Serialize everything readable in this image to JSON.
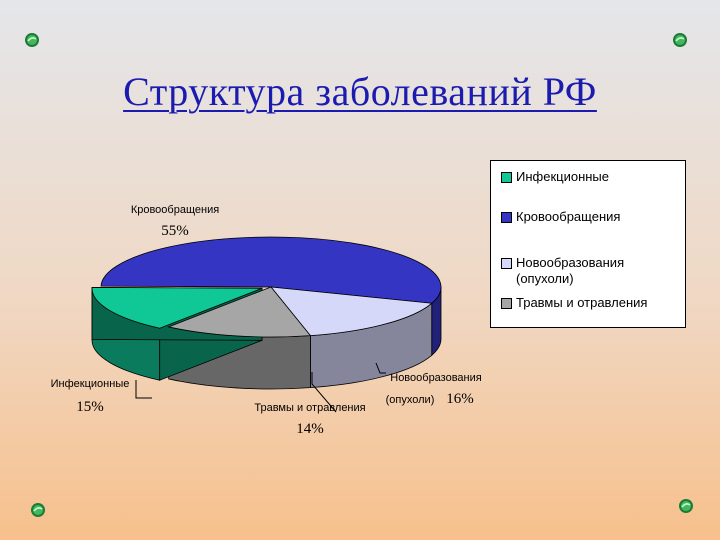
{
  "slide": {
    "title": "Структура заболеваний РФ"
  },
  "decor": {
    "corner_icon": "green-bead-icon"
  },
  "chart_data": {
    "type": "pie",
    "title": "",
    "slices": [
      {
        "label": "Кровообращения",
        "label_line1": "Кровообращения",
        "value": 55,
        "value_text": "55%",
        "color": "#3535c4"
      },
      {
        "label": "Новообразования (опухоли)",
        "label_line1": "Новообразования",
        "label_line2": "(опухоли)",
        "value": 16,
        "value_text": "16%",
        "color": "#d6d8fa"
      },
      {
        "label": "Травмы и отравления",
        "label_line1": "Травмы и отравления",
        "value": 14,
        "value_text": "14%",
        "color": "#a6a6a6"
      },
      {
        "label": "Инфекционные",
        "label_line1": "Инфекционные",
        "value": 15,
        "value_text": "15%",
        "color": "#10c896"
      }
    ],
    "legend": {
      "position": "right",
      "entries": [
        {
          "label": "Инфекционные",
          "color": "#10c896"
        },
        {
          "label": "Кровообращения",
          "color": "#3535c4"
        },
        {
          "label": "Новообразования\n(опухоли)",
          "color": "#d6d8fa"
        },
        {
          "label": "Травмы и отравления",
          "color": "#a6a6a6"
        }
      ]
    }
  }
}
